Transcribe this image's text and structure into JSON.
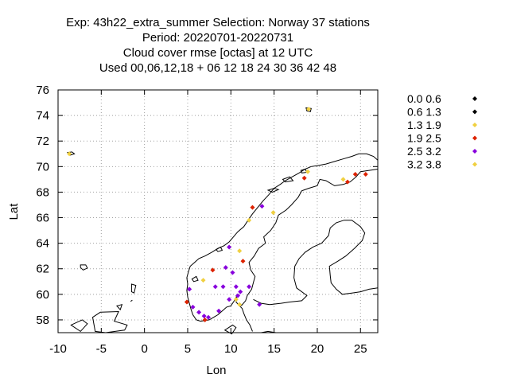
{
  "chart_data": {
    "type": "scatter",
    "title": [
      "Exp: 43h22_extra_summer   Selection: Norway     37 stations",
      "Period: 20220701-20220731",
      "Cloud cover rmse [octas] at  12 UTC",
      "Used  00,06,12,18  + 06 12 18 24 30 36 42 48"
    ],
    "xlabel": "Lon",
    "ylabel": "Lat",
    "xlim": [
      -10,
      27
    ],
    "ylim": [
      57,
      76
    ],
    "xticks": [
      -10,
      -5,
      0,
      5,
      10,
      15,
      20,
      25
    ],
    "yticks": [
      58,
      60,
      62,
      64,
      66,
      68,
      70,
      72,
      74,
      76
    ],
    "grid": true,
    "legend_position": "right",
    "classes": [
      {
        "label": "0.0 0.6",
        "color": "#000000"
      },
      {
        "label": "0.6 1.3",
        "color": "#000000"
      },
      {
        "label": "1.3 1.9",
        "color": "#f0d040"
      },
      {
        "label": "1.9 2.5",
        "color": "#dd2200"
      },
      {
        "label": "2.5 3.2",
        "color": "#8800dd"
      },
      {
        "label": "3.2 3.8",
        "color": "#f0d040"
      }
    ],
    "points": [
      {
        "lon": -8.7,
        "lat": 71.0,
        "cls": 5
      },
      {
        "lon": 19.0,
        "lat": 74.5,
        "cls": 5
      },
      {
        "lon": 18.9,
        "lat": 69.6,
        "cls": 5
      },
      {
        "lon": 18.5,
        "lat": 69.1,
        "cls": 3
      },
      {
        "lon": 23.0,
        "lat": 69.0,
        "cls": 5
      },
      {
        "lon": 23.5,
        "lat": 68.8,
        "cls": 3
      },
      {
        "lon": 24.4,
        "lat": 69.4,
        "cls": 3
      },
      {
        "lon": 25.6,
        "lat": 69.4,
        "cls": 3
      },
      {
        "lon": 12.5,
        "lat": 66.8,
        "cls": 3
      },
      {
        "lon": 13.6,
        "lat": 66.9,
        "cls": 4
      },
      {
        "lon": 14.9,
        "lat": 66.4,
        "cls": 5
      },
      {
        "lon": 12.1,
        "lat": 65.8,
        "cls": 5
      },
      {
        "lon": 9.8,
        "lat": 63.7,
        "cls": 4
      },
      {
        "lon": 11.0,
        "lat": 63.4,
        "cls": 5
      },
      {
        "lon": 11.4,
        "lat": 62.6,
        "cls": 3
      },
      {
        "lon": 7.9,
        "lat": 61.9,
        "cls": 3
      },
      {
        "lon": 9.4,
        "lat": 62.1,
        "cls": 4
      },
      {
        "lon": 10.2,
        "lat": 61.7,
        "cls": 4
      },
      {
        "lon": 6.8,
        "lat": 61.1,
        "cls": 5
      },
      {
        "lon": 8.2,
        "lat": 60.6,
        "cls": 4
      },
      {
        "lon": 9.1,
        "lat": 60.6,
        "cls": 4
      },
      {
        "lon": 10.6,
        "lat": 60.6,
        "cls": 4
      },
      {
        "lon": 12.1,
        "lat": 60.6,
        "cls": 4
      },
      {
        "lon": 5.2,
        "lat": 60.4,
        "cls": 4
      },
      {
        "lon": 11.1,
        "lat": 60.2,
        "cls": 4
      },
      {
        "lon": 10.8,
        "lat": 59.9,
        "cls": 4
      },
      {
        "lon": 10.6,
        "lat": 59.6,
        "cls": 5
      },
      {
        "lon": 9.8,
        "lat": 59.6,
        "cls": 4
      },
      {
        "lon": 13.3,
        "lat": 59.2,
        "cls": 4
      },
      {
        "lon": 4.9,
        "lat": 59.4,
        "cls": 3
      },
      {
        "lon": 5.6,
        "lat": 59.0,
        "cls": 4
      },
      {
        "lon": 6.3,
        "lat": 58.6,
        "cls": 4
      },
      {
        "lon": 6.9,
        "lat": 58.3,
        "cls": 4
      },
      {
        "lon": 7.0,
        "lat": 58.0,
        "cls": 3
      },
      {
        "lon": 7.4,
        "lat": 58.2,
        "cls": 4
      },
      {
        "lon": 8.6,
        "lat": 58.7,
        "cls": 4
      },
      {
        "lon": 11.0,
        "lat": 59.2,
        "cls": 5
      }
    ]
  }
}
